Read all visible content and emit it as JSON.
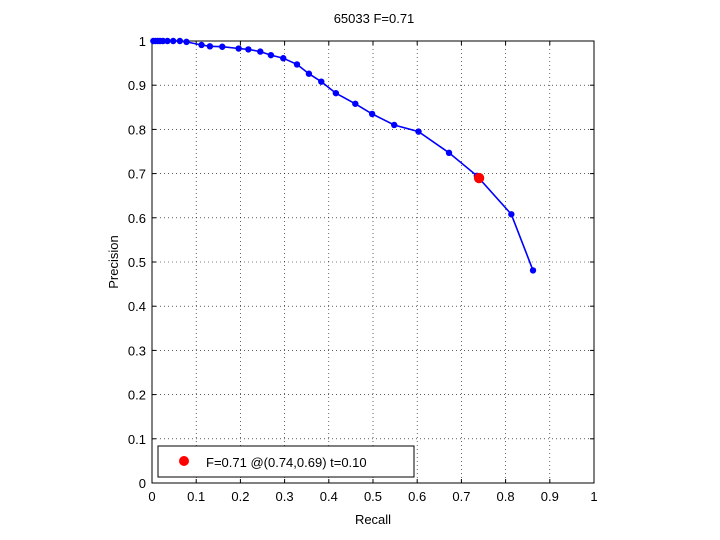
{
  "chart_data": {
    "type": "line",
    "title": "65033 F=0.71",
    "xlabel": "Recall",
    "ylabel": "Precision",
    "xlim": [
      0,
      1
    ],
    "ylim": [
      0,
      1
    ],
    "grid": true,
    "x_ticks": [
      "0",
      "0.1",
      "0.2",
      "0.3",
      "0.4",
      "0.5",
      "0.6",
      "0.7",
      "0.8",
      "0.9",
      "1"
    ],
    "y_ticks": [
      "0",
      "0.1",
      "0.2",
      "0.3",
      "0.4",
      "0.5",
      "0.6",
      "0.7",
      "0.8",
      "0.9",
      "1"
    ],
    "series": [
      {
        "color": "#0000ff",
        "x": [
          0.003,
          0.008,
          0.013,
          0.018,
          0.025,
          0.035,
          0.048,
          0.063,
          0.078,
          0.112,
          0.131,
          0.159,
          0.196,
          0.218,
          0.245,
          0.269,
          0.297,
          0.328,
          0.355,
          0.383,
          0.416,
          0.46,
          0.498,
          0.548,
          0.603,
          0.672,
          0.735,
          0.813,
          0.862
        ],
        "y": [
          1.0,
          1.0,
          1.0,
          1.0,
          1.0,
          1.0,
          1.0,
          1.0,
          0.998,
          0.991,
          0.988,
          0.987,
          0.983,
          0.981,
          0.976,
          0.968,
          0.961,
          0.947,
          0.926,
          0.908,
          0.882,
          0.858,
          0.835,
          0.81,
          0.795,
          0.747,
          0.695,
          0.608,
          0.481
        ]
      }
    ],
    "highlight": {
      "color": "#ff0000",
      "x": 0.74,
      "y": 0.69,
      "label": "F=0.71 @(0.74,0.69) t=0.10"
    },
    "legend_position": "bottom-left"
  }
}
